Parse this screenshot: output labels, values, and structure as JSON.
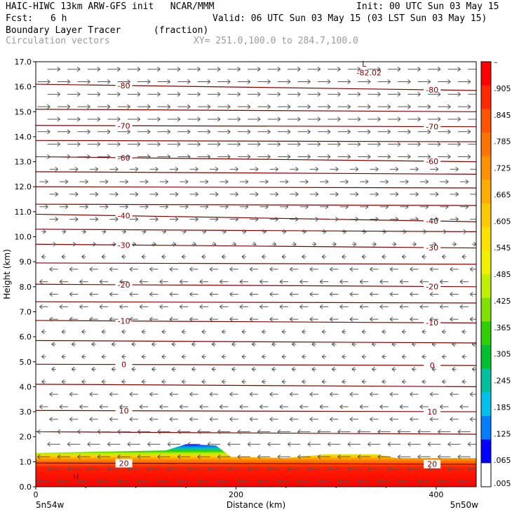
{
  "header": {
    "model_line": "HAIC-HIWC 13km ARW-GFS init   NCAR/MMM",
    "init_line": "Init: 00 UTC Sun 03 May 15",
    "fcst_label": "Fcst:",
    "fcst_value": "6 h",
    "valid_line": "Valid: 06 UTC Sun 03 May 15 (03 LST Sun 03 May 15)",
    "field_name": "Boundary Layer Tracer",
    "field_units": "(fraction)",
    "vector_name": "Circulation vectors",
    "xsec_coords": "XY= 251.0,100.0 to 284.7,100.0"
  },
  "chart_data": {
    "type": "heatmap",
    "xlabel": "Distance (km)",
    "ylabel": "Height (km)",
    "xlim": [
      0,
      440
    ],
    "ylim": [
      0,
      17
    ],
    "xticks": [
      "0",
      "200",
      "400"
    ],
    "yticks": [
      "0.0",
      "1.0",
      "2.0",
      "3.0",
      "4.0",
      "5.0",
      "6.0",
      "7.0",
      "8.0",
      "9.0",
      "10.0",
      "11.0",
      "12.0",
      "13.0",
      "14.0",
      "15.0",
      "16.0",
      "17.0"
    ],
    "left_endpoint": "5n54w",
    "right_endpoint": "5n50w",
    "colorbar": {
      "labels": [
        "–",
        ".905",
        ".845",
        ".785",
        ".725",
        ".665",
        ".605",
        ".545",
        ".485",
        ".425",
        ".365",
        ".305",
        ".245",
        ".185",
        ".125",
        ".065",
        ".005"
      ],
      "colors": [
        "#ff0000",
        "#ff2a00",
        "#ff5500",
        "#ff7400",
        "#ff9100",
        "#ffad00",
        "#ffc800",
        "#ffe000",
        "#f0f000",
        "#c0f000",
        "#80e000",
        "#30d000",
        "#00c030",
        "#00c0a0",
        "#00c0f0",
        "#0080ff",
        "#0000ff",
        "#ffffff"
      ]
    },
    "contours": [
      {
        "label": "-80",
        "y_left": 16.1,
        "y_right": 15.85
      },
      {
        "label": "",
        "y_left": 15.1,
        "y_right": 15.0
      },
      {
        "label": "-70",
        "y_left": 14.45,
        "y_right": 14.4
      },
      {
        "label": "",
        "y_left": 13.85,
        "y_right": 13.8
      },
      {
        "label": "-60",
        "y_left": 13.2,
        "y_right": 13.0
      },
      {
        "label": "",
        "y_left": 12.6,
        "y_right": 12.5
      },
      {
        "label": "",
        "y_left": 12.0,
        "y_right": 11.95
      },
      {
        "label": "",
        "y_left": 11.3,
        "y_right": 11.25
      },
      {
        "label": "-40",
        "y_left": 10.9,
        "y_right": 10.6
      },
      {
        "label": "",
        "y_left": 10.3,
        "y_right": 10.2
      },
      {
        "label": "-30",
        "y_left": 9.7,
        "y_right": 9.55
      },
      {
        "label": "",
        "y_left": 8.95,
        "y_right": 8.9
      },
      {
        "label": "-20",
        "y_left": 8.1,
        "y_right": 8.0
      },
      {
        "label": "",
        "y_left": 7.4,
        "y_right": 7.35
      },
      {
        "label": "-10",
        "y_left": 6.65,
        "y_right": 6.55
      },
      {
        "label": "",
        "y_left": 5.85,
        "y_right": 5.75
      },
      {
        "label": "0",
        "y_left": 4.9,
        "y_right": 4.85
      },
      {
        "label": "",
        "y_left": 4.1,
        "y_right": 4.0
      },
      {
        "label": "10",
        "y_left": 3.05,
        "y_right": 3.0
      },
      {
        "label": "",
        "y_left": 2.2,
        "y_right": 2.1
      },
      {
        "label": "20",
        "y_left": 0.95,
        "y_right": 0.9
      }
    ],
    "annotations": [
      {
        "text": "L",
        "x": 328,
        "y": 16.8
      },
      {
        "text": "-82.02",
        "x": 333,
        "y": 16.45
      },
      {
        "text": "H",
        "x": 40,
        "y": 0.3
      }
    ],
    "boundary_layer_top": [
      {
        "x": 0,
        "h": 1.35
      },
      {
        "x": 60,
        "h": 1.4
      },
      {
        "x": 130,
        "h": 1.45
      },
      {
        "x": 150,
        "h": 1.7
      },
      {
        "x": 180,
        "h": 1.65
      },
      {
        "x": 195,
        "h": 1.2
      },
      {
        "x": 250,
        "h": 1.15
      },
      {
        "x": 290,
        "h": 1.3
      },
      {
        "x": 340,
        "h": 1.3
      },
      {
        "x": 360,
        "h": 1.15
      },
      {
        "x": 440,
        "h": 1.15
      }
    ],
    "wind_bands": [
      {
        "from": 13.0,
        "to": 17.0,
        "dir": 1
      },
      {
        "from": 9.5,
        "to": 13.0,
        "dir": 1
      },
      {
        "from": 5.0,
        "to": 9.5,
        "dir": -1
      },
      {
        "from": 0.0,
        "to": 5.0,
        "dir": -1
      }
    ]
  }
}
